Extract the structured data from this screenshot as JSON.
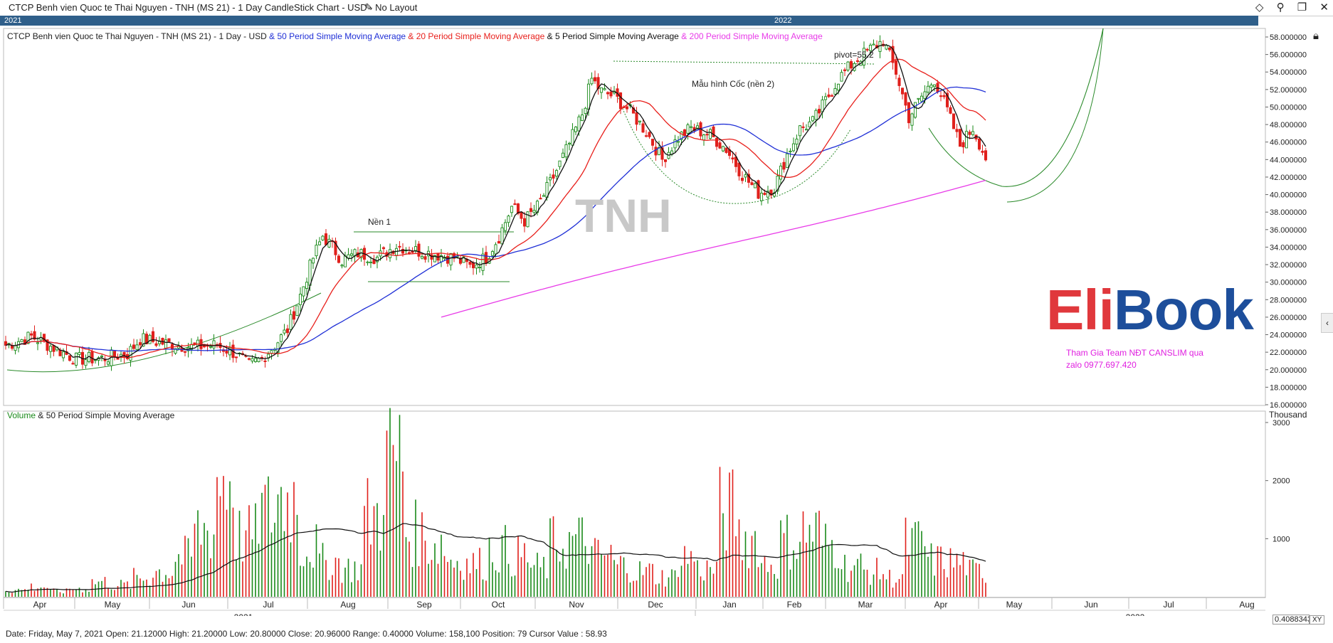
{
  "window": {
    "title": "CTCP Benh vien Quoc te Thai Nguyen - TNH (MS 21) - 1 Day CandleStick Chart - USD - No Layout",
    "edit_icon": "pencil-icon",
    "buttons": [
      "diamond-icon",
      "pin-icon",
      "restore-icon",
      "close-icon"
    ]
  },
  "scroll_strip": {
    "year_left": "2021",
    "year_mid": "2022"
  },
  "legend_price": {
    "base": "CTCP Benh vien Quoc te Thai Nguyen - TNH (MS 21) - 1 Day - USD",
    "ma50": "& 50 Period Simple Moving Average",
    "ma20": "& 20 Period Simple Moving Average",
    "ma5": "& 5 Period Simple Moving Average",
    "ma200": "& 200 Period Simple Moving Average"
  },
  "legend_volume": {
    "volume": "Volume",
    "ma50": "& 50 Period Simple Moving Average"
  },
  "annotations": {
    "base1": "Nền 1",
    "cup": "Mẫu hình Cốc (nền 2)",
    "pivot": "pivot=55.2",
    "watermark": "TNH"
  },
  "brand": {
    "eli": "Eli",
    "book": "Book"
  },
  "promo": {
    "line1": "Tham Gia Team NĐT CANSLIM qua",
    "line2": "zalo 0977.697.420"
  },
  "volume_axis": {
    "unit": "Thousand",
    "ticks": [
      "3000",
      "2000",
      "1000"
    ]
  },
  "x_axis": {
    "months": [
      "Apr",
      "May",
      "Jun",
      "Jul",
      "Aug",
      "Sep",
      "Oct",
      "Nov",
      "Dec",
      "Jan",
      "Feb",
      "Mar",
      "Apr",
      "May",
      "Jun",
      "Jul",
      "Aug"
    ],
    "years": [
      "2021",
      "2022"
    ]
  },
  "status_bar": "Date: Friday, May 7, 2021 Open: 21.12000 High: 21.20000 Low: 20.80000 Close: 20.96000 Range: 0.40000 Volume: 158,100 Position: 79 Cursor Value : 58.93",
  "cursor_box": "0.4088343",
  "xy_button": "XY",
  "colors": {
    "up": "#1a8a1a",
    "down": "#e0201c",
    "ma50": "#1f2fd6",
    "ma20": "#e8201c",
    "ma5": "#111111",
    "ma200": "#e83ae8",
    "guide": "#2a8a2a"
  },
  "chart_data": {
    "type": "candlestick",
    "title": "CTCP Benh vien Quoc te Thai Nguyen - TNH (MS 21) - 1 Day - USD",
    "y_ticks": [
      "58.000000",
      "56.000000",
      "54.000000",
      "52.000000",
      "50.000000",
      "48.000000",
      "46.000000",
      "44.000000",
      "42.000000",
      "40.000000",
      "38.000000",
      "36.000000",
      "34.000000",
      "32.000000",
      "30.000000",
      "28.000000",
      "26.000000",
      "24.000000",
      "22.000000",
      "20.000000",
      "18.000000",
      "16.000000"
    ],
    "ylim": [
      16,
      58
    ],
    "price_anchors": [
      [
        0,
        22.8
      ],
      [
        8,
        23.8
      ],
      [
        15,
        22.5
      ],
      [
        22,
        21.2
      ],
      [
        30,
        21.3
      ],
      [
        38,
        21.8
      ],
      [
        42,
        23.5
      ],
      [
        50,
        23.0
      ],
      [
        58,
        22.6
      ],
      [
        66,
        22.8
      ],
      [
        72,
        21.8
      ],
      [
        76,
        20.5
      ],
      [
        80,
        21.3
      ],
      [
        84,
        22.8
      ],
      [
        88,
        24.6
      ],
      [
        92,
        28.5
      ],
      [
        96,
        32.8
      ],
      [
        99,
        35.3
      ],
      [
        102,
        34.0
      ],
      [
        105,
        32.5
      ],
      [
        110,
        33.3
      ],
      [
        116,
        32.8
      ],
      [
        122,
        34.2
      ],
      [
        128,
        33.6
      ],
      [
        134,
        33.2
      ],
      [
        140,
        32.8
      ],
      [
        145,
        31.8
      ],
      [
        150,
        32.8
      ],
      [
        154,
        35.2
      ],
      [
        158,
        38.6
      ],
      [
        162,
        37.0
      ],
      [
        166,
        38.6
      ],
      [
        171,
        42.0
      ],
      [
        176,
        45.8
      ],
      [
        180,
        49.2
      ],
      [
        183,
        53.2
      ],
      [
        186,
        51.8
      ],
      [
        190,
        51.2
      ],
      [
        195,
        49.5
      ],
      [
        200,
        47.2
      ],
      [
        205,
        44.0
      ],
      [
        210,
        46.5
      ],
      [
        214,
        47.6
      ],
      [
        220,
        46.8
      ],
      [
        225,
        45.2
      ],
      [
        230,
        42.3
      ],
      [
        235,
        40.2
      ],
      [
        240,
        40.8
      ],
      [
        244,
        44.6
      ],
      [
        248,
        47.5
      ],
      [
        252,
        48.3
      ],
      [
        256,
        50.7
      ],
      [
        260,
        53.2
      ],
      [
        265,
        55.2
      ],
      [
        270,
        56.6
      ],
      [
        274,
        57.6
      ],
      [
        278,
        54.0
      ],
      [
        282,
        48.8
      ],
      [
        286,
        51.2
      ],
      [
        290,
        53.2
      ],
      [
        294,
        49.6
      ],
      [
        298,
        45.6
      ],
      [
        302,
        47.6
      ],
      [
        306,
        44.2
      ]
    ],
    "last_index": 306,
    "volume_ylim": [
      0,
      3000
    ],
    "volume_pattern_thousands": [
      150,
      220,
      120,
      180,
      330,
      260,
      420,
      560,
      880,
      1480,
      2600,
      1350,
      1900,
      2200,
      1100,
      780,
      630,
      1800,
      3050,
      1400,
      1200,
      820,
      740,
      1050,
      900,
      650,
      1180,
      1250,
      900,
      700,
      560,
      450,
      880,
      620,
      1900,
      1300,
      750,
      1250,
      1450,
      1150,
      680,
      560,
      420,
      1180,
      800,
      760,
      560
    ]
  }
}
